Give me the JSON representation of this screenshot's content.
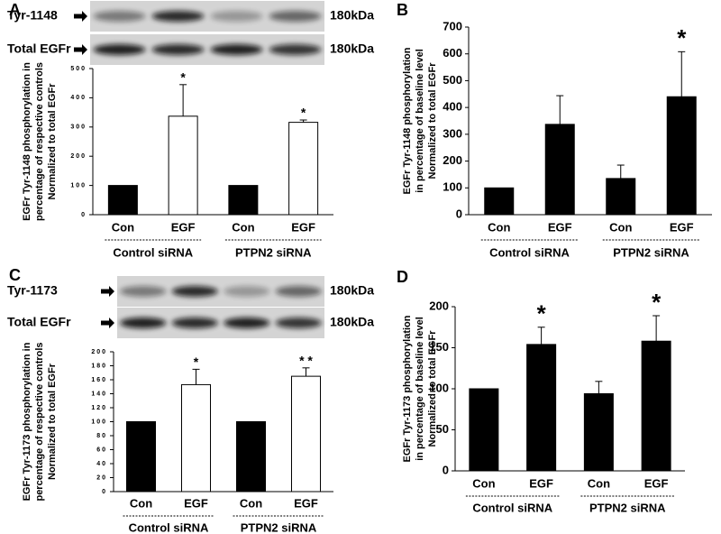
{
  "chart_data": [
    {
      "type": "bar",
      "panel": "A",
      "blot": [
        {
          "label": "Tyr-1148",
          "size": "180kDa"
        },
        {
          "label": "Total EGFr",
          "size": "180kDa"
        }
      ],
      "ylabel": [
        "EGFr Tyr-1148 phosphorylation in",
        "percentage of respective controls",
        "Normalized to total EGFr"
      ],
      "categories": [
        "Con",
        "EGF",
        "Con",
        "EGF"
      ],
      "groups": [
        "Control siRNA",
        "PTPN2 siRNA"
      ],
      "values": [
        100,
        337,
        100,
        316
      ],
      "errors": [
        null,
        108,
        null,
        8
      ],
      "colors": [
        "#000000",
        "#ffffff",
        "#000000",
        "#ffffff"
      ],
      "annotations": [
        null,
        "*",
        null,
        "*"
      ],
      "ylim": [
        0,
        500
      ],
      "yticks": [
        0,
        100,
        200,
        300,
        400,
        500
      ]
    },
    {
      "type": "bar",
      "panel": "B",
      "ylabel": [
        "EGFr Tyr-1148 phosphorylation",
        "in percentage of baseline level",
        "Normalized to total EGFr"
      ],
      "categories": [
        "Con",
        "EGF",
        "Con",
        "EGF"
      ],
      "groups": [
        "Control siRNA",
        "PTPN2 siRNA"
      ],
      "values": [
        100,
        337,
        135,
        440
      ],
      "errors": [
        null,
        107,
        50,
        168
      ],
      "colors": [
        "#000000",
        "#000000",
        "#000000",
        "#000000"
      ],
      "annotations": [
        null,
        null,
        null,
        "*"
      ],
      "ylim": [
        0,
        700
      ],
      "yticks": [
        0,
        100,
        200,
        300,
        400,
        500,
        600,
        700
      ]
    },
    {
      "type": "bar",
      "panel": "C",
      "blot": [
        {
          "label": "Tyr-1173",
          "size": "180kDa"
        },
        {
          "label": "Total EGFr",
          "size": "180kDa"
        }
      ],
      "ylabel": [
        "EGFr Tyr-1173 phosphorylation in",
        "percentage of respective controls",
        "Normalized to total EGFr"
      ],
      "categories": [
        "Con",
        "EGF",
        "Con",
        "EGF"
      ],
      "groups": [
        "Control siRNA",
        "PTPN2 siRNA"
      ],
      "values": [
        100,
        153,
        100,
        165
      ],
      "errors": [
        null,
        22,
        null,
        12
      ],
      "colors": [
        "#000000",
        "#ffffff",
        "#000000",
        "#ffffff"
      ],
      "annotations": [
        null,
        "*",
        null,
        "* *"
      ],
      "ylim": [
        0,
        200
      ],
      "yticks": [
        0,
        20,
        40,
        60,
        80,
        100,
        120,
        140,
        160,
        180,
        200
      ]
    },
    {
      "type": "bar",
      "panel": "D",
      "ylabel": [
        "EGFr Tyr-1173 phosphorylation",
        "in percentage of baseline level",
        "Normalized to total EGFr"
      ],
      "categories": [
        "Con",
        "EGF",
        "Con",
        "EGF"
      ],
      "groups": [
        "Control siRNA",
        "PTPN2 siRNA"
      ],
      "values": [
        100,
        154,
        94,
        158
      ],
      "errors": [
        null,
        21,
        15,
        31
      ],
      "colors": [
        "#000000",
        "#000000",
        "#000000",
        "#000000"
      ],
      "annotations": [
        null,
        "*",
        null,
        "*"
      ],
      "ylim": [
        0,
        200
      ],
      "yticks": [
        0,
        50,
        100,
        150,
        200
      ]
    }
  ]
}
